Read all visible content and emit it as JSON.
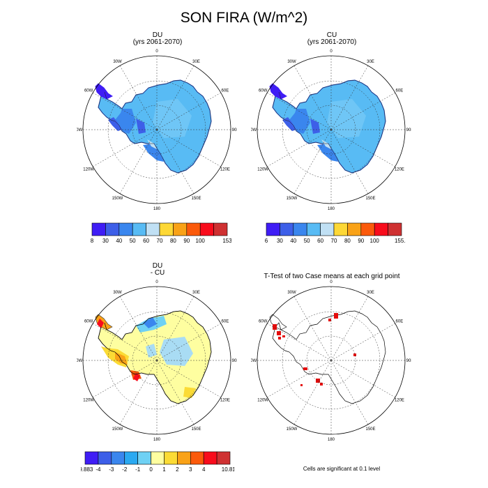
{
  "title": "SON FIRA (W/m^2)",
  "lon_labels": [
    "0",
    "30E",
    "60E",
    "90E",
    "120E",
    "150E",
    "180",
    "150W",
    "120W",
    "90W",
    "60W",
    "30W"
  ],
  "panels": [
    {
      "id": "du",
      "title_line1": "DU",
      "title_line2": "(yrs 2061-2070)",
      "colorbar": {
        "labels": [
          "8",
          "30",
          "40",
          "50",
          "60",
          "70",
          "80",
          "90",
          "100",
          "153"
        ],
        "colors": [
          "#3f1df5",
          "#3d5fe8",
          "#3a86ee",
          "#58bbf4",
          "#c0e0f4",
          "#fdd836",
          "#f9a217",
          "#fb5a0b",
          "#f80c1c",
          "#cf3132"
        ]
      }
    },
    {
      "id": "cu",
      "title_line1": "CU",
      "title_line2": "(yrs 2061-2070)",
      "colorbar": {
        "labels": [
          "6",
          "30",
          "40",
          "50",
          "60",
          "70",
          "80",
          "90",
          "100",
          "155.5"
        ],
        "colors": [
          "#3f1df5",
          "#3d5fe8",
          "#3a86ee",
          "#58bbf4",
          "#c0e0f4",
          "#fdd836",
          "#f9a217",
          "#fb5a0b",
          "#f80c1c",
          "#cf3132"
        ]
      }
    },
    {
      "id": "diff",
      "title_line1": "DU",
      "title_line2": "- CU",
      "colorbar": {
        "labels": [
          "-9.883",
          "-4",
          "-3",
          "-2",
          "-1",
          "0",
          "1",
          "2",
          "3",
          "4",
          "10.812"
        ],
        "colors": [
          "#3f1df5",
          "#3d5fe8",
          "#3a86ee",
          "#2aa9f1",
          "#6fd1f4",
          "#fefea0",
          "#fbdb35",
          "#f9a217",
          "#fb5a0b",
          "#f80c1c",
          "#cf3132"
        ]
      }
    },
    {
      "id": "ttest",
      "title_line1": "T-Test of two Case means at each grid point",
      "title_line2": "",
      "colorbar": null
    }
  ],
  "significance_note": "Cells are significant at 0.1 level"
}
